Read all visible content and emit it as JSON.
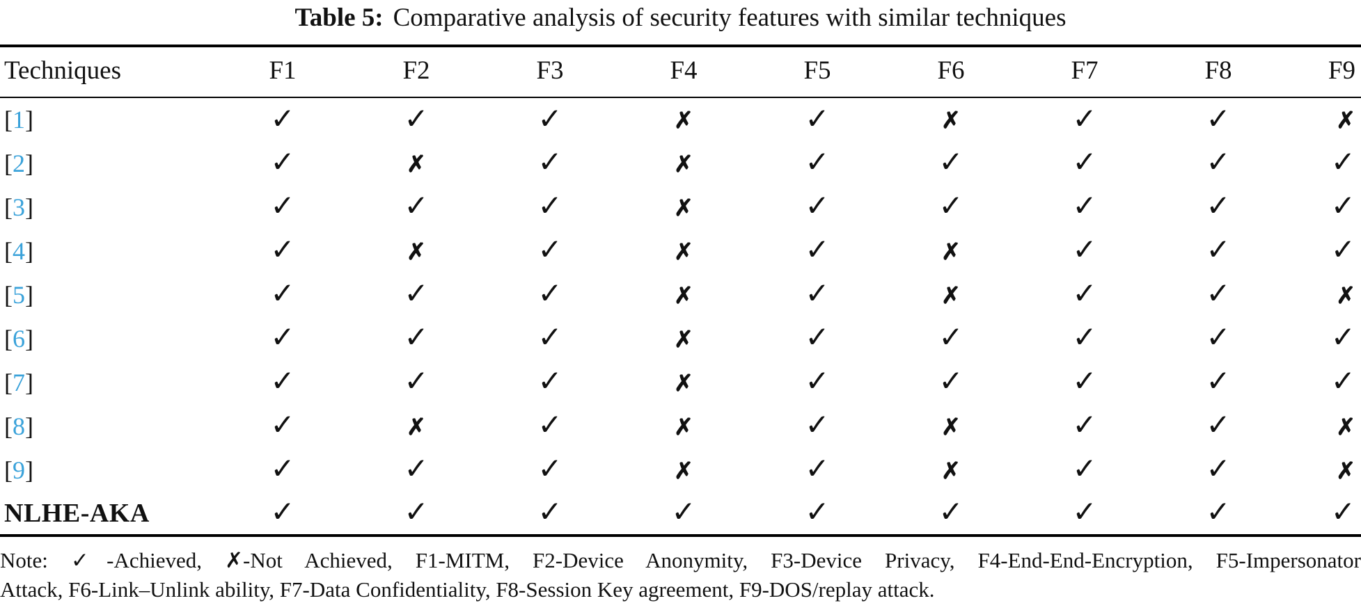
{
  "title": {
    "label": "Table 5:",
    "text": "Comparative analysis of security features with similar techniques"
  },
  "symbols": {
    "achieved": "✓",
    "not_achieved": "✗"
  },
  "colors": {
    "citation_blue": "#3aa2da",
    "text": "#111111"
  },
  "table": {
    "columns": [
      "Techniques",
      "F1",
      "F2",
      "F3",
      "F4",
      "F5",
      "F6",
      "F7",
      "F8",
      "F9"
    ],
    "rows": [
      {
        "ref": "1",
        "values": [
          "y",
          "y",
          "y",
          "n",
          "y",
          "n",
          "y",
          "y",
          "n"
        ]
      },
      {
        "ref": "2",
        "values": [
          "y",
          "n",
          "y",
          "n",
          "y",
          "y",
          "y",
          "y",
          "y"
        ]
      },
      {
        "ref": "3",
        "values": [
          "y",
          "y",
          "y",
          "n",
          "y",
          "y",
          "y",
          "y",
          "y"
        ]
      },
      {
        "ref": "4",
        "values": [
          "y",
          "n",
          "y",
          "n",
          "y",
          "n",
          "y",
          "y",
          "y"
        ]
      },
      {
        "ref": "5",
        "values": [
          "y",
          "y",
          "y",
          "n",
          "y",
          "n",
          "y",
          "y",
          "n"
        ]
      },
      {
        "ref": "6",
        "values": [
          "y",
          "y",
          "y",
          "n",
          "y",
          "y",
          "y",
          "y",
          "y"
        ]
      },
      {
        "ref": "7",
        "values": [
          "y",
          "y",
          "y",
          "n",
          "y",
          "y",
          "y",
          "y",
          "y"
        ]
      },
      {
        "ref": "8",
        "values": [
          "y",
          "n",
          "y",
          "n",
          "y",
          "n",
          "y",
          "y",
          "n"
        ]
      },
      {
        "ref": "9",
        "values": [
          "y",
          "y",
          "y",
          "n",
          "y",
          "n",
          "y",
          "y",
          "n"
        ]
      },
      {
        "label": "NLHE-AKA",
        "values": [
          "y",
          "y",
          "y",
          "y",
          "y",
          "y",
          "y",
          "y",
          "y"
        ]
      }
    ]
  },
  "note": {
    "line1": "Note: ✓-Achieved, ✗-Not Achieved, F1-MITM, F2-Device Anonymity, F3-Device Privacy, F4-End-End-Encryption, F5-Impersonator",
    "line2": "Attack, F6-Link–Unlink ability, F7-Data Confidentiality, F8-Session Key agreement, F9-DOS/replay attack."
  }
}
